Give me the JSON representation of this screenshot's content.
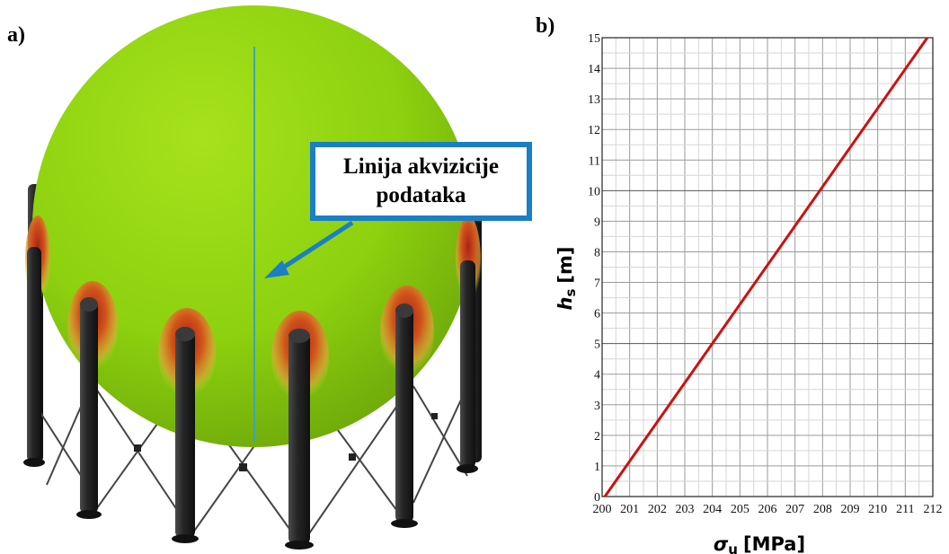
{
  "panel_a": {
    "label": "a)",
    "callout_line1": "Linija akvizicije",
    "callout_line2": "podataka",
    "colors": {
      "sphere": "#8fd40f",
      "hotspot": "#d2541a",
      "leg": "#262626",
      "arrow": "#1a7fc4",
      "acquisition_line": "#3aa6b8"
    }
  },
  "panel_b": {
    "label": "b)"
  },
  "chart_data": {
    "type": "line",
    "title": "",
    "xlabel_symbol": "σ",
    "xlabel_sub": "u",
    "xlabel_unit": "[MPa]",
    "ylabel_symbol": "h",
    "ylabel_sub": "s",
    "ylabel_unit": "[m]",
    "xlim": [
      200,
      212
    ],
    "ylim": [
      0,
      15
    ],
    "x_ticks": [
      "200",
      "201",
      "202",
      "203",
      "204",
      "205",
      "206",
      "207",
      "208",
      "209",
      "210",
      "211",
      "212"
    ],
    "y_ticks": [
      "0",
      "1",
      "2",
      "3",
      "4",
      "5",
      "6",
      "7",
      "8",
      "9",
      "10",
      "11",
      "12",
      "13",
      "14",
      "15"
    ],
    "grid": true,
    "series": [
      {
        "color": "#cc1111",
        "x": [
          200.1,
          211.8
        ],
        "y": [
          0,
          15
        ]
      }
    ]
  }
}
